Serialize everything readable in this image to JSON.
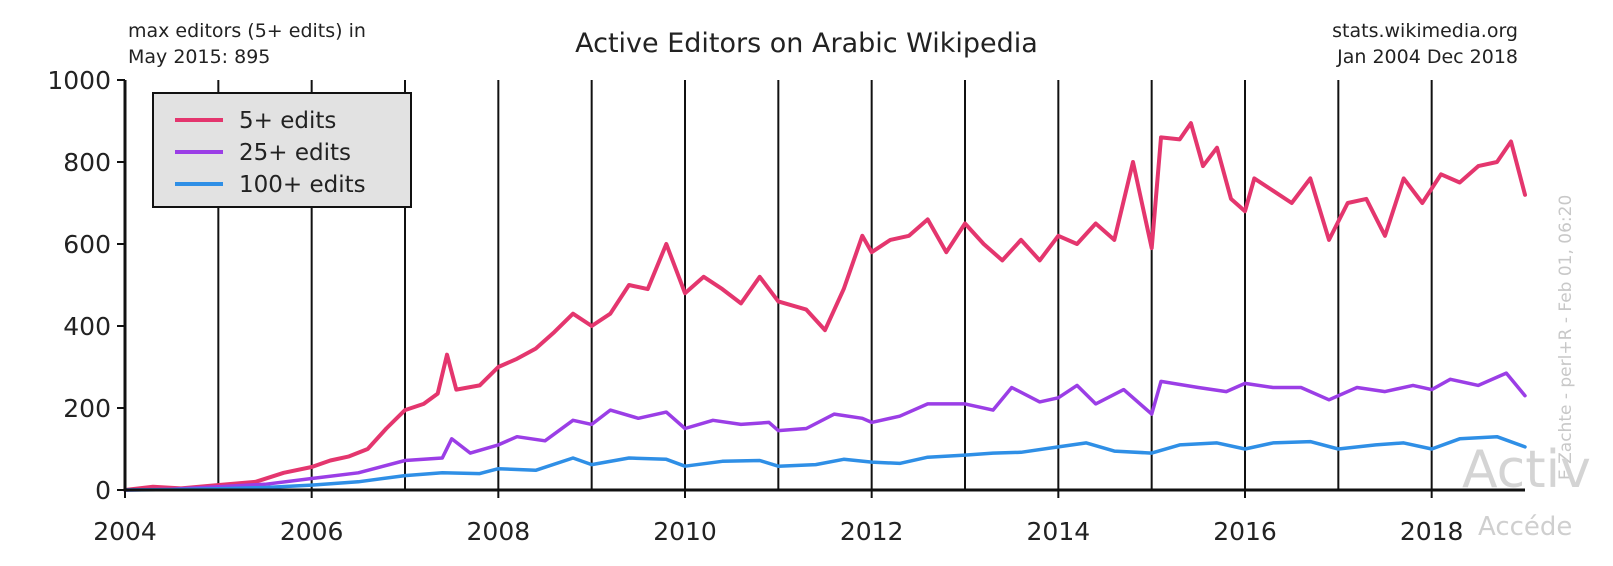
{
  "header": {
    "note_line1": "max editors (5+ edits) in",
    "note_line2": "May 2015: 895",
    "source_line1": "stats.wikimedia.org",
    "source_line2": "Jan 2004 Dec 2018"
  },
  "side_credit": "E Zachte - perl+R - Feb 01, 06:20",
  "overlay": {
    "big_text": "Activ",
    "small_text": "Accéde"
  },
  "chart_data": {
    "type": "line",
    "title": "Active Editors on Arabic Wikipedia",
    "xlabel": "",
    "ylabel": "",
    "xlim": [
      2004,
      2019
    ],
    "ylim": [
      0,
      1000
    ],
    "x_ticks": [
      2004,
      2006,
      2008,
      2010,
      2012,
      2014,
      2016,
      2018
    ],
    "y_ticks": [
      0,
      200,
      400,
      600,
      800,
      1000
    ],
    "vertical_grid_years": [
      2005,
      2006,
      2007,
      2008,
      2009,
      2010,
      2011,
      2012,
      2013,
      2014,
      2015,
      2016,
      2017,
      2018
    ],
    "grid": true,
    "legend_position": "top-left",
    "series": [
      {
        "name": "5+ edits",
        "color": "#e4366e",
        "points": [
          [
            2004.0,
            0
          ],
          [
            2004.3,
            8
          ],
          [
            2004.6,
            4
          ],
          [
            2004.9,
            10
          ],
          [
            2005.1,
            14
          ],
          [
            2005.4,
            20
          ],
          [
            2005.7,
            42
          ],
          [
            2006.0,
            56
          ],
          [
            2006.2,
            72
          ],
          [
            2006.4,
            82
          ],
          [
            2006.6,
            100
          ],
          [
            2006.8,
            150
          ],
          [
            2007.0,
            195
          ],
          [
            2007.2,
            210
          ],
          [
            2007.35,
            235
          ],
          [
            2007.45,
            330
          ],
          [
            2007.55,
            245
          ],
          [
            2007.8,
            255
          ],
          [
            2008.0,
            300
          ],
          [
            2008.2,
            320
          ],
          [
            2008.4,
            345
          ],
          [
            2008.6,
            385
          ],
          [
            2008.8,
            430
          ],
          [
            2009.0,
            400
          ],
          [
            2009.2,
            430
          ],
          [
            2009.4,
            500
          ],
          [
            2009.6,
            490
          ],
          [
            2009.8,
            600
          ],
          [
            2010.0,
            480
          ],
          [
            2010.2,
            520
          ],
          [
            2010.4,
            490
          ],
          [
            2010.6,
            455
          ],
          [
            2010.8,
            520
          ],
          [
            2011.0,
            460
          ],
          [
            2011.3,
            440
          ],
          [
            2011.5,
            390
          ],
          [
            2011.7,
            490
          ],
          [
            2011.9,
            620
          ],
          [
            2012.0,
            580
          ],
          [
            2012.2,
            610
          ],
          [
            2012.4,
            620
          ],
          [
            2012.6,
            660
          ],
          [
            2012.8,
            580
          ],
          [
            2013.0,
            650
          ],
          [
            2013.2,
            600
          ],
          [
            2013.4,
            560
          ],
          [
            2013.6,
            610
          ],
          [
            2013.8,
            560
          ],
          [
            2014.0,
            620
          ],
          [
            2014.2,
            600
          ],
          [
            2014.4,
            650
          ],
          [
            2014.6,
            610
          ],
          [
            2014.8,
            800
          ],
          [
            2015.0,
            590
          ],
          [
            2015.1,
            860
          ],
          [
            2015.3,
            855
          ],
          [
            2015.42,
            895
          ],
          [
            2015.55,
            790
          ],
          [
            2015.7,
            835
          ],
          [
            2015.85,
            710
          ],
          [
            2016.0,
            680
          ],
          [
            2016.1,
            760
          ],
          [
            2016.3,
            730
          ],
          [
            2016.5,
            700
          ],
          [
            2016.7,
            760
          ],
          [
            2016.9,
            610
          ],
          [
            2017.1,
            700
          ],
          [
            2017.3,
            710
          ],
          [
            2017.5,
            620
          ],
          [
            2017.7,
            760
          ],
          [
            2017.9,
            700
          ],
          [
            2018.1,
            770
          ],
          [
            2018.3,
            750
          ],
          [
            2018.5,
            790
          ],
          [
            2018.7,
            800
          ],
          [
            2018.85,
            850
          ],
          [
            2019.0,
            720
          ]
        ]
      },
      {
        "name": "25+ edits",
        "color": "#9b3ee6",
        "points": [
          [
            2004.0,
            0
          ],
          [
            2004.5,
            2
          ],
          [
            2005.0,
            8
          ],
          [
            2005.5,
            14
          ],
          [
            2006.0,
            28
          ],
          [
            2006.5,
            42
          ],
          [
            2007.0,
            72
          ],
          [
            2007.4,
            78
          ],
          [
            2007.5,
            125
          ],
          [
            2007.7,
            90
          ],
          [
            2008.0,
            110
          ],
          [
            2008.2,
            130
          ],
          [
            2008.5,
            120
          ],
          [
            2008.8,
            170
          ],
          [
            2009.0,
            160
          ],
          [
            2009.2,
            195
          ],
          [
            2009.5,
            175
          ],
          [
            2009.8,
            190
          ],
          [
            2010.0,
            150
          ],
          [
            2010.3,
            170
          ],
          [
            2010.6,
            160
          ],
          [
            2010.9,
            165
          ],
          [
            2011.0,
            145
          ],
          [
            2011.3,
            150
          ],
          [
            2011.6,
            185
          ],
          [
            2011.9,
            175
          ],
          [
            2012.0,
            165
          ],
          [
            2012.3,
            180
          ],
          [
            2012.6,
            210
          ],
          [
            2013.0,
            210
          ],
          [
            2013.3,
            195
          ],
          [
            2013.5,
            250
          ],
          [
            2013.8,
            215
          ],
          [
            2014.0,
            225
          ],
          [
            2014.2,
            255
          ],
          [
            2014.4,
            210
          ],
          [
            2014.7,
            245
          ],
          [
            2015.0,
            185
          ],
          [
            2015.1,
            265
          ],
          [
            2015.5,
            250
          ],
          [
            2015.8,
            240
          ],
          [
            2016.0,
            260
          ],
          [
            2016.3,
            250
          ],
          [
            2016.6,
            250
          ],
          [
            2016.9,
            220
          ],
          [
            2017.2,
            250
          ],
          [
            2017.5,
            240
          ],
          [
            2017.8,
            255
          ],
          [
            2018.0,
            245
          ],
          [
            2018.2,
            270
          ],
          [
            2018.5,
            255
          ],
          [
            2018.8,
            285
          ],
          [
            2019.0,
            230
          ]
        ]
      },
      {
        "name": "100+ edits",
        "color": "#2f8fe6",
        "points": [
          [
            2004.0,
            0
          ],
          [
            2004.5,
            1
          ],
          [
            2005.0,
            3
          ],
          [
            2005.5,
            6
          ],
          [
            2006.0,
            12
          ],
          [
            2006.5,
            20
          ],
          [
            2007.0,
            35
          ],
          [
            2007.4,
            42
          ],
          [
            2007.8,
            40
          ],
          [
            2008.0,
            52
          ],
          [
            2008.4,
            48
          ],
          [
            2008.8,
            78
          ],
          [
            2009.0,
            62
          ],
          [
            2009.4,
            78
          ],
          [
            2009.8,
            75
          ],
          [
            2010.0,
            58
          ],
          [
            2010.4,
            70
          ],
          [
            2010.8,
            72
          ],
          [
            2011.0,
            58
          ],
          [
            2011.4,
            62
          ],
          [
            2011.7,
            75
          ],
          [
            2012.0,
            68
          ],
          [
            2012.3,
            65
          ],
          [
            2012.6,
            80
          ],
          [
            2013.0,
            85
          ],
          [
            2013.3,
            90
          ],
          [
            2013.6,
            92
          ],
          [
            2014.0,
            105
          ],
          [
            2014.3,
            115
          ],
          [
            2014.6,
            95
          ],
          [
            2015.0,
            90
          ],
          [
            2015.3,
            110
          ],
          [
            2015.7,
            115
          ],
          [
            2016.0,
            100
          ],
          [
            2016.3,
            115
          ],
          [
            2016.7,
            118
          ],
          [
            2017.0,
            100
          ],
          [
            2017.4,
            110
          ],
          [
            2017.7,
            115
          ],
          [
            2018.0,
            100
          ],
          [
            2018.3,
            125
          ],
          [
            2018.7,
            130
          ],
          [
            2019.0,
            105
          ]
        ]
      }
    ]
  }
}
